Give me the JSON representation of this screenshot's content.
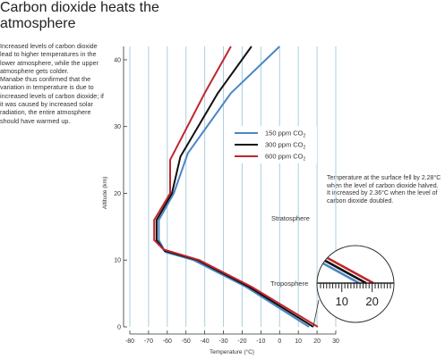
{
  "title": "Carbon dioxide heats the atmosphere",
  "description": [
    "Increased levels of carbon dioxide lead to higher temperatures in the lower atmosphere, while the upper atmosphere gets colder.",
    "Manabe thus confirmed that the variation in temperature is due to increased levels of carbon dioxide; if it was caused by increased solar radiation, the entire atmosphere should have warmed up."
  ],
  "note": [
    "Temperature at the surface fell by 2.28°C when the level of carbon dioxide halved.",
    "It increased by 2.36°C when the level of carbon dioxide doubled."
  ],
  "chart_data": {
    "type": "line",
    "xlabel": "Temperature (°C)",
    "ylabel": "Altitude (km)",
    "xlim": [
      -80,
      30
    ],
    "ylim": [
      0,
      42
    ],
    "xticks": [
      -80,
      -70,
      -60,
      -50,
      -40,
      -30,
      -20,
      -10,
      0,
      10,
      20,
      30
    ],
    "yticks": [
      0,
      10,
      20,
      30,
      40
    ],
    "grid": "vertical",
    "legend_position": "right",
    "series": [
      {
        "name": "150 ppm CO",
        "subscript": "2",
        "color": "#4a86c5",
        "points": [
          [
            15.7,
            0
          ],
          [
            -18,
            6
          ],
          [
            -46,
            10
          ],
          [
            -61,
            11.2
          ],
          [
            -64.5,
            13
          ],
          [
            -64.5,
            16
          ],
          [
            -56.5,
            20
          ],
          [
            -49,
            26
          ],
          [
            -26,
            35
          ],
          [
            0,
            42
          ]
        ]
      },
      {
        "name": "300 ppm CO",
        "subscript": "2",
        "color": "#111111",
        "points": [
          [
            18,
            0
          ],
          [
            -16.5,
            6
          ],
          [
            -44,
            10
          ],
          [
            -61.5,
            11.4
          ],
          [
            -65.7,
            13
          ],
          [
            -65.7,
            16
          ],
          [
            -57.5,
            20
          ],
          [
            -53,
            25.5
          ],
          [
            -33,
            35
          ],
          [
            -15,
            42
          ]
        ]
      },
      {
        "name": "600 ppm CO",
        "subscript": "2",
        "color": "#c0262b",
        "points": [
          [
            20.4,
            0
          ],
          [
            -15,
            6
          ],
          [
            -43,
            10
          ],
          [
            -62,
            11.6
          ],
          [
            -67,
            13
          ],
          [
            -67,
            16
          ],
          [
            -58.5,
            20
          ],
          [
            -58.5,
            25
          ],
          [
            -40,
            35
          ],
          [
            -26,
            42
          ]
        ]
      }
    ],
    "annotations": [
      "Stratosphere",
      "Troposphere"
    ],
    "inset": {
      "ticks": [
        10,
        20
      ],
      "xlim": [
        3,
        26
      ]
    }
  }
}
